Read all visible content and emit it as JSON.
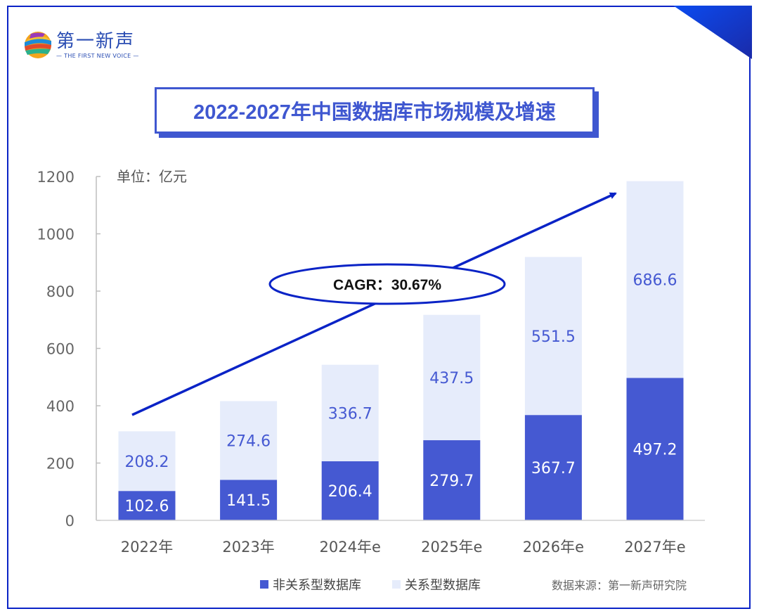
{
  "brand": {
    "name_cn": "第一新声",
    "name_en": "— THE FIRST NEW VOICE —"
  },
  "colors": {
    "frame": "#0a23c6",
    "non_relational": "#4559d2",
    "relational": "#e6ecfb",
    "arrow": "#0a23c6",
    "title": "#3f57d0"
  },
  "chart_data": {
    "type": "bar",
    "stacked": true,
    "title": "2022-2027年中国数据库市场规模及增速",
    "unit_label": "单位：亿元",
    "xlabel": "",
    "ylabel": "",
    "ylim": [
      0,
      1200
    ],
    "yticks": [
      0,
      200,
      400,
      600,
      800,
      1000,
      1200
    ],
    "categories": [
      "2022年",
      "2023年",
      "2024年e",
      "2025年e",
      "2026年e",
      "2027年e"
    ],
    "series": [
      {
        "name": "非关系型数据库",
        "values": [
          102.6,
          141.5,
          206.4,
          279.7,
          367.7,
          497.2
        ]
      },
      {
        "name": "关系型数据库",
        "values": [
          208.2,
          274.6,
          336.7,
          437.5,
          551.5,
          686.6
        ]
      }
    ],
    "annotation": "CAGR：30.67%",
    "legend_position": "bottom",
    "grid": false,
    "source": "数据来源：第一新声研究院"
  }
}
